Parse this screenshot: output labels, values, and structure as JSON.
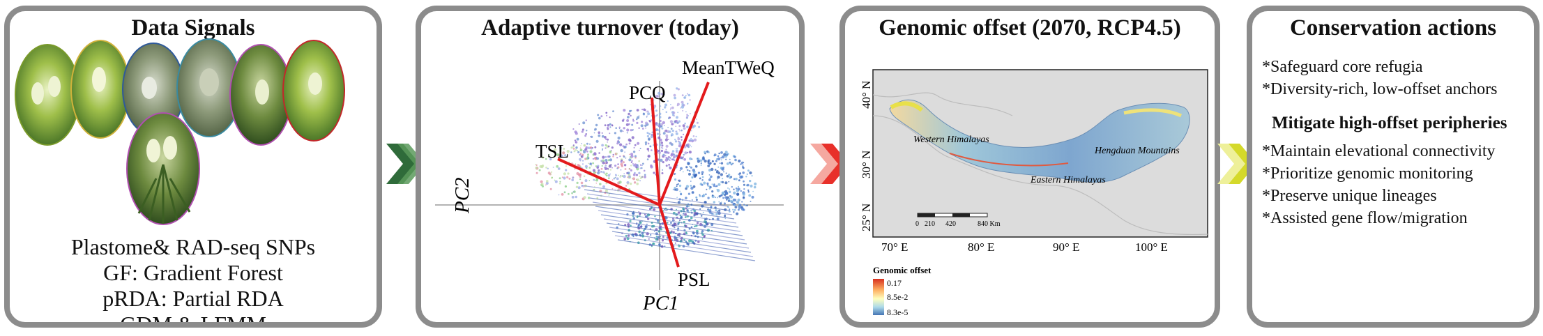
{
  "panels": {
    "data_signals": {
      "title": "Data Signals",
      "methods": [
        "Plastome& RAD-seq SNPs",
        "GF: Gradient Forest",
        "pRDA: Partial RDA",
        "GDM & LFMM"
      ]
    },
    "adaptive_turnover": {
      "title": "Adaptive turnover (today)",
      "axis_pc1": "PC1",
      "axis_pc2": "PC2",
      "vectors": [
        "MeanTWeQ",
        "PCQ",
        "TSL",
        "PSL"
      ]
    },
    "genomic_offset": {
      "title": "Genomic offset (2070, RCP4.5)",
      "regions": [
        "Western Himalayas",
        "Hengduan Mountains",
        "Eastern Himalayas"
      ],
      "lat_ticks": [
        "40° N",
        "30° N",
        "25° N"
      ],
      "lon_ticks": [
        "70° E",
        "80° E",
        "90° E",
        "100° E"
      ],
      "scale_labels": [
        "0",
        "210",
        "420",
        "840 Km"
      ],
      "legend": {
        "title": "Genomic offset",
        "max": "0.17",
        "mid": "8.5e-2",
        "min": "8.3e-5",
        "colors": [
          "#d7301f",
          "#fdae61",
          "#ffffbf",
          "#abd9e9",
          "#4575b4"
        ]
      }
    },
    "conservation_actions": {
      "title": "Conservation actions",
      "items_top": [
        "*Safeguard core refugia",
        "*Diversity-rich, low-offset anchors"
      ],
      "heading": "Mitigate high-offset peripheries",
      "items_bottom": [
        "*Maintain elevational connectivity",
        "*Prioritize genomic monitoring",
        "*Preserve unique lineages",
        "*Assisted gene flow/migration"
      ]
    }
  },
  "colors": {
    "panel_border": "#8c8c8c",
    "arrow_1": "#2f6b3a",
    "arrow_2": "#e8302a",
    "arrow_3": "#d4d92a",
    "vector": "#e31a1c",
    "map_background": "#dcdcdc"
  }
}
